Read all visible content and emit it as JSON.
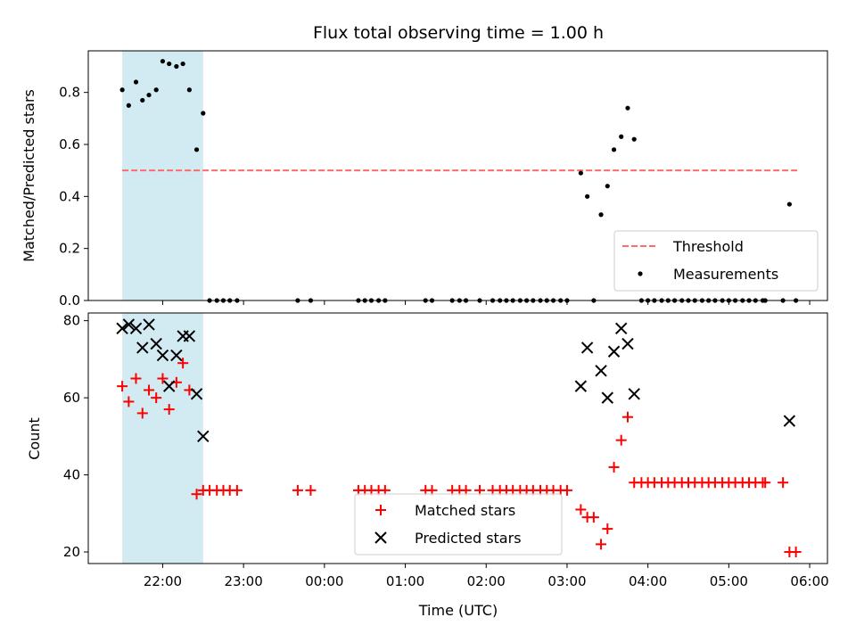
{
  "chart_data": {
    "type": "scatter",
    "title": "Flux total observing time = 1.00 h",
    "xlabel": "Time (UTC)",
    "x_unit": "hours",
    "xlim": [
      -2.92,
      6.22
    ],
    "x_ticks": [
      {
        "value": -2,
        "label": "22:00"
      },
      {
        "value": -1,
        "label": "23:00"
      },
      {
        "value": 0,
        "label": "00:00"
      },
      {
        "value": 1,
        "label": "01:00"
      },
      {
        "value": 2,
        "label": "02:00"
      },
      {
        "value": 3,
        "label": "03:00"
      },
      {
        "value": 4,
        "label": "04:00"
      },
      {
        "value": 5,
        "label": "05:00"
      },
      {
        "value": 6,
        "label": "06:00"
      }
    ],
    "shaded_span": {
      "x0": -2.5,
      "x1": -1.5,
      "color": "#add8e6"
    },
    "panels": [
      {
        "id": "ratio",
        "ylabel": "Matched/Predicted stars",
        "ylim": [
          0,
          0.96
        ],
        "y_ticks": [
          {
            "value": 0,
            "label": "0.0"
          },
          {
            "value": 0.2,
            "label": "0.2"
          },
          {
            "value": 0.4,
            "label": "0.4"
          },
          {
            "value": 0.6,
            "label": "0.6"
          },
          {
            "value": 0.8,
            "label": "0.8"
          }
        ],
        "threshold": {
          "name": "Threshold",
          "value": 0.5,
          "x0": -2.5,
          "x1": 5.85,
          "color": "#ff6b6b"
        },
        "legend": [
          "Threshold",
          "Measurements"
        ],
        "legend_position": "lower right",
        "series": [
          {
            "name": "Measurements",
            "marker": "dot",
            "color": "#000000",
            "points": [
              [
                -2.5,
                0.81
              ],
              [
                -2.42,
                0.75
              ],
              [
                -2.33,
                0.84
              ],
              [
                -2.25,
                0.77
              ],
              [
                -2.17,
                0.79
              ],
              [
                -2.08,
                0.81
              ],
              [
                -2.0,
                0.92
              ],
              [
                -1.92,
                0.91
              ],
              [
                -1.83,
                0.9
              ],
              [
                -1.75,
                0.91
              ],
              [
                -1.67,
                0.81
              ],
              [
                -1.58,
                0.58
              ],
              [
                -1.5,
                0.72
              ],
              [
                -1.42,
                0
              ],
              [
                -1.33,
                0
              ],
              [
                -1.25,
                0
              ],
              [
                -1.17,
                0
              ],
              [
                -1.08,
                0
              ],
              [
                -0.33,
                0
              ],
              [
                -0.17,
                0
              ],
              [
                0.42,
                0
              ],
              [
                0.5,
                0
              ],
              [
                0.58,
                0
              ],
              [
                0.67,
                0
              ],
              [
                0.75,
                0
              ],
              [
                1.25,
                0
              ],
              [
                1.33,
                0
              ],
              [
                1.58,
                0
              ],
              [
                1.67,
                0
              ],
              [
                1.75,
                0
              ],
              [
                1.92,
                0
              ],
              [
                2.08,
                0
              ],
              [
                2.17,
                0
              ],
              [
                2.25,
                0
              ],
              [
                2.33,
                0
              ],
              [
                2.42,
                0
              ],
              [
                2.5,
                0
              ],
              [
                2.58,
                0
              ],
              [
                2.67,
                0
              ],
              [
                2.75,
                0
              ],
              [
                2.83,
                0
              ],
              [
                2.92,
                0
              ],
              [
                3.0,
                0
              ],
              [
                3.17,
                0.49
              ],
              [
                3.25,
                0.4
              ],
              [
                3.33,
                0
              ],
              [
                3.42,
                0.33
              ],
              [
                3.5,
                0.44
              ],
              [
                3.58,
                0.58
              ],
              [
                3.67,
                0.63
              ],
              [
                3.75,
                0.74
              ],
              [
                3.83,
                0.62
              ],
              [
                3.92,
                0
              ],
              [
                4.0,
                0
              ],
              [
                4.08,
                0
              ],
              [
                4.17,
                0
              ],
              [
                4.25,
                0
              ],
              [
                4.33,
                0
              ],
              [
                4.42,
                0
              ],
              [
                4.5,
                0
              ],
              [
                4.58,
                0
              ],
              [
                4.67,
                0
              ],
              [
                4.75,
                0
              ],
              [
                4.83,
                0
              ],
              [
                4.92,
                0
              ],
              [
                5.0,
                0
              ],
              [
                5.08,
                0
              ],
              [
                5.17,
                0
              ],
              [
                5.25,
                0
              ],
              [
                5.33,
                0
              ],
              [
                5.42,
                0
              ],
              [
                5.45,
                0
              ],
              [
                5.67,
                0
              ],
              [
                5.75,
                0.37
              ],
              [
                5.83,
                0
              ]
            ]
          }
        ]
      },
      {
        "id": "count",
        "ylabel": "Count",
        "ylim": [
          17,
          82
        ],
        "y_ticks": [
          {
            "value": 20,
            "label": "20"
          },
          {
            "value": 40,
            "label": "40"
          },
          {
            "value": 60,
            "label": "60"
          },
          {
            "value": 80,
            "label": "80"
          }
        ],
        "legend": [
          "Matched stars",
          "Predicted stars"
        ],
        "legend_position": "lower center",
        "series": [
          {
            "name": "Matched stars",
            "marker": "plus",
            "color": "#ff0000",
            "points": [
              [
                -2.5,
                63
              ],
              [
                -2.42,
                59
              ],
              [
                -2.33,
                65
              ],
              [
                -2.25,
                56
              ],
              [
                -2.17,
                62
              ],
              [
                -2.08,
                60
              ],
              [
                -2.0,
                65
              ],
              [
                -1.92,
                57
              ],
              [
                -1.83,
                64
              ],
              [
                -1.75,
                69
              ],
              [
                -1.67,
                62
              ],
              [
                -1.58,
                35
              ],
              [
                -1.5,
                36
              ],
              [
                -1.42,
                36
              ],
              [
                -1.33,
                36
              ],
              [
                -1.25,
                36
              ],
              [
                -1.17,
                36
              ],
              [
                -1.08,
                36
              ],
              [
                -0.33,
                36
              ],
              [
                -0.17,
                36
              ],
              [
                0.42,
                36
              ],
              [
                0.5,
                36
              ],
              [
                0.58,
                36
              ],
              [
                0.67,
                36
              ],
              [
                0.75,
                36
              ],
              [
                1.25,
                36
              ],
              [
                1.33,
                36
              ],
              [
                1.58,
                36
              ],
              [
                1.67,
                36
              ],
              [
                1.75,
                36
              ],
              [
                1.92,
                36
              ],
              [
                2.08,
                36
              ],
              [
                2.17,
                36
              ],
              [
                2.25,
                36
              ],
              [
                2.33,
                36
              ],
              [
                2.42,
                36
              ],
              [
                2.5,
                36
              ],
              [
                2.58,
                36
              ],
              [
                2.67,
                36
              ],
              [
                2.75,
                36
              ],
              [
                2.83,
                36
              ],
              [
                2.92,
                36
              ],
              [
                3.0,
                36
              ],
              [
                3.17,
                31
              ],
              [
                3.25,
                29
              ],
              [
                3.33,
                29
              ],
              [
                3.42,
                22
              ],
              [
                3.5,
                26
              ],
              [
                3.58,
                42
              ],
              [
                3.67,
                49
              ],
              [
                3.75,
                55
              ],
              [
                3.83,
                38
              ],
              [
                3.92,
                38
              ],
              [
                4.0,
                38
              ],
              [
                4.08,
                38
              ],
              [
                4.17,
                38
              ],
              [
                4.25,
                38
              ],
              [
                4.33,
                38
              ],
              [
                4.42,
                38
              ],
              [
                4.5,
                38
              ],
              [
                4.58,
                38
              ],
              [
                4.67,
                38
              ],
              [
                4.75,
                38
              ],
              [
                4.83,
                38
              ],
              [
                4.92,
                38
              ],
              [
                5.0,
                38
              ],
              [
                5.08,
                38
              ],
              [
                5.17,
                38
              ],
              [
                5.25,
                38
              ],
              [
                5.33,
                38
              ],
              [
                5.42,
                38
              ],
              [
                5.45,
                38
              ],
              [
                5.67,
                38
              ],
              [
                5.75,
                20
              ],
              [
                5.83,
                20
              ]
            ]
          },
          {
            "name": "Predicted stars",
            "marker": "x",
            "color": "#000000",
            "points": [
              [
                -2.5,
                78
              ],
              [
                -2.42,
                79
              ],
              [
                -2.33,
                78
              ],
              [
                -2.25,
                73
              ],
              [
                -2.17,
                79
              ],
              [
                -2.08,
                74
              ],
              [
                -2.0,
                71
              ],
              [
                -1.92,
                63
              ],
              [
                -1.83,
                71
              ],
              [
                -1.75,
                76
              ],
              [
                -1.67,
                76
              ],
              [
                -1.58,
                61
              ],
              [
                -1.5,
                50
              ],
              [
                3.17,
                63
              ],
              [
                3.25,
                73
              ],
              [
                3.42,
                67
              ],
              [
                3.5,
                60
              ],
              [
                3.58,
                72
              ],
              [
                3.67,
                78
              ],
              [
                3.75,
                74
              ],
              [
                3.83,
                61
              ],
              [
                5.75,
                54
              ]
            ]
          }
        ]
      }
    ]
  }
}
